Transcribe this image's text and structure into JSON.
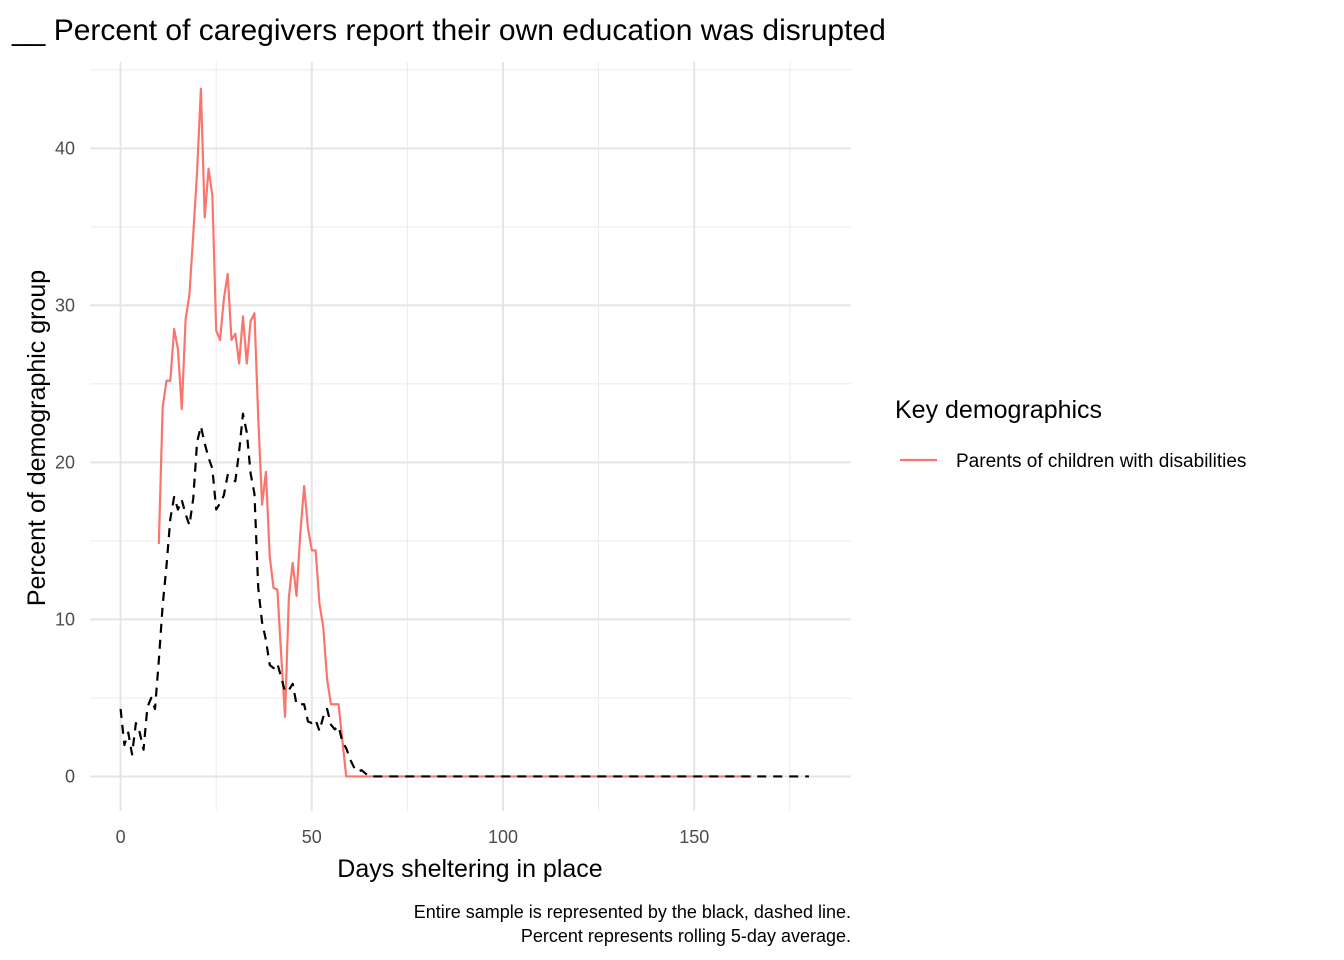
{
  "chart_data": {
    "type": "line",
    "title": "__ Percent of caregivers report their own education was disrupted",
    "xlabel": "Days sheltering in place",
    "ylabel": "Percent of demographic group",
    "caption": [
      "Entire sample is represented by the black, dashed line.",
      "Percent represents rolling 5-day average."
    ],
    "xlim": [
      -8,
      191
    ],
    "ylim": [
      -2.2,
      45.5
    ],
    "x_ticks": [
      0,
      50,
      100,
      150
    ],
    "x_tick_labels": [
      "0",
      "50",
      "100",
      "150"
    ],
    "y_ticks": [
      0,
      10,
      20,
      30,
      40
    ],
    "y_tick_labels": [
      "0",
      "10",
      "20",
      "30",
      "40"
    ],
    "grid": true,
    "legend": {
      "title": "Key demographics",
      "position": "right",
      "entries": [
        {
          "label": "Parents of children with disabilities",
          "color": "#f8766d"
        }
      ]
    },
    "series": [
      {
        "name": "Parents of children with disabilities",
        "color": "#f8766d",
        "dash": "solid",
        "in_legend": true,
        "points": [
          [
            10,
            14.8
          ],
          [
            11,
            23.5
          ],
          [
            12,
            25.2
          ],
          [
            13,
            25.2
          ],
          [
            14,
            28.5
          ],
          [
            15,
            27.2
          ],
          [
            16,
            23.4
          ],
          [
            17,
            29.1
          ],
          [
            18,
            30.7
          ],
          [
            19,
            34.5
          ],
          [
            20,
            38.5
          ],
          [
            21,
            43.8
          ],
          [
            22,
            35.6
          ],
          [
            23,
            38.7
          ],
          [
            24,
            37.0
          ],
          [
            25,
            28.4
          ],
          [
            26,
            27.8
          ],
          [
            27,
            30.4
          ],
          [
            28,
            32.0
          ],
          [
            29,
            27.8
          ],
          [
            30,
            28.2
          ],
          [
            31,
            26.3
          ],
          [
            32,
            29.3
          ],
          [
            33,
            26.3
          ],
          [
            34,
            29.0
          ],
          [
            35,
            29.5
          ],
          [
            36,
            22.8
          ],
          [
            37,
            17.3
          ],
          [
            38,
            19.4
          ],
          [
            39,
            14.0
          ],
          [
            40,
            12.0
          ],
          [
            41,
            11.9
          ],
          [
            42,
            7.7
          ],
          [
            43,
            3.8
          ],
          [
            44,
            11.4
          ],
          [
            45,
            13.6
          ],
          [
            46,
            11.5
          ],
          [
            47,
            15.5
          ],
          [
            48,
            18.5
          ],
          [
            49,
            15.8
          ],
          [
            50,
            14.4
          ],
          [
            51,
            14.4
          ],
          [
            52,
            11.0
          ],
          [
            53,
            9.5
          ],
          [
            54,
            6.2
          ],
          [
            55,
            4.6
          ],
          [
            56,
            4.6
          ],
          [
            57,
            4.6
          ],
          [
            58,
            2.3
          ],
          [
            59,
            0.0
          ],
          [
            60,
            0.0
          ],
          [
            165,
            0.0
          ]
        ]
      },
      {
        "name": "",
        "color": "#000000",
        "dash": "dashed",
        "in_legend": false,
        "points": [
          [
            0,
            4.3
          ],
          [
            1,
            2.0
          ],
          [
            2,
            2.8
          ],
          [
            3,
            1.4
          ],
          [
            4,
            3.4
          ],
          [
            5,
            2.8
          ],
          [
            6,
            1.7
          ],
          [
            7,
            4.4
          ],
          [
            8,
            5.0
          ],
          [
            9,
            4.3
          ],
          [
            10,
            7.4
          ],
          [
            11,
            10.9
          ],
          [
            12,
            13.4
          ],
          [
            13,
            16.4
          ],
          [
            14,
            17.8
          ],
          [
            15,
            17.0
          ],
          [
            16,
            17.6
          ],
          [
            17,
            16.7
          ],
          [
            18,
            16.0
          ],
          [
            19,
            17.7
          ],
          [
            20,
            21.3
          ],
          [
            21,
            22.3
          ],
          [
            22,
            21.2
          ],
          [
            23,
            20.3
          ],
          [
            24,
            19.6
          ],
          [
            25,
            17.0
          ],
          [
            26,
            17.4
          ],
          [
            27,
            17.9
          ],
          [
            28,
            19.2
          ],
          [
            29,
            19.0
          ],
          [
            30,
            18.8
          ],
          [
            31,
            20.7
          ],
          [
            32,
            23.1
          ],
          [
            33,
            21.9
          ],
          [
            34,
            19.3
          ],
          [
            35,
            18.0
          ],
          [
            36,
            12.0
          ],
          [
            37,
            9.8
          ],
          [
            38,
            8.7
          ],
          [
            39,
            7.1
          ],
          [
            40,
            6.9
          ],
          [
            41,
            7.2
          ],
          [
            42,
            6.3
          ],
          [
            43,
            5.4
          ],
          [
            44,
            5.5
          ],
          [
            45,
            5.9
          ],
          [
            46,
            4.6
          ],
          [
            47,
            4.6
          ],
          [
            48,
            4.6
          ],
          [
            49,
            3.5
          ],
          [
            50,
            3.4
          ],
          [
            51,
            3.6
          ],
          [
            52,
            2.9
          ],
          [
            53,
            3.8
          ],
          [
            54,
            4.3
          ],
          [
            55,
            3.3
          ],
          [
            56,
            3.0
          ],
          [
            57,
            3.2
          ],
          [
            58,
            2.2
          ],
          [
            59,
            1.8
          ],
          [
            60,
            1.1
          ],
          [
            61,
            0.6
          ],
          [
            62,
            0.3
          ],
          [
            63,
            0.4
          ],
          [
            64,
            0.2
          ],
          [
            65,
            0.0
          ],
          [
            180,
            0.0
          ]
        ]
      }
    ]
  }
}
